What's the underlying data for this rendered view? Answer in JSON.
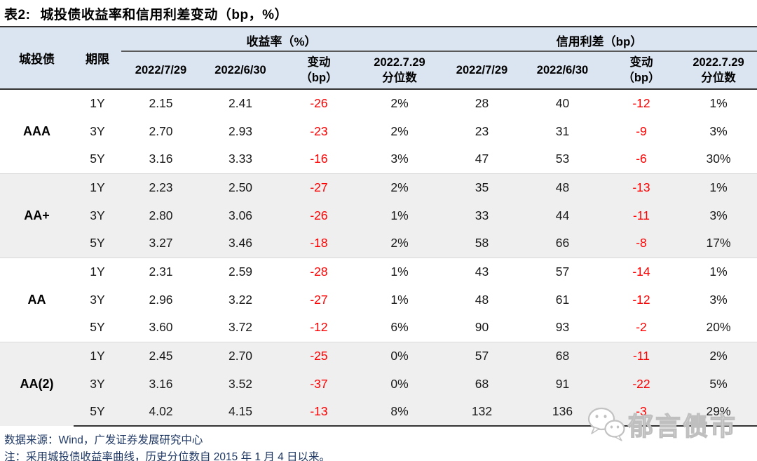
{
  "title": {
    "prefix": "表2:",
    "text": "城投债收益率和信用利差变动（bp，%）"
  },
  "colors": {
    "header_bg": "#dbe5f1",
    "alt_row_bg": "#efefef",
    "negative_value": "#ff0000",
    "footer_text": "#1f3864"
  },
  "table": {
    "corner": {
      "bond": "城投债",
      "tenor": "期限"
    },
    "group_headers": {
      "yield": "收益率（%）",
      "spread": "信用利差（bp）"
    },
    "sub_headers": [
      {
        "lines": [
          "2022/7/29"
        ]
      },
      {
        "lines": [
          "2022/6/30"
        ]
      },
      {
        "lines": [
          "变动",
          "（bp）"
        ]
      },
      {
        "lines": [
          "2022.7.29",
          "分位数"
        ]
      },
      {
        "lines": [
          "2022/7/29"
        ]
      },
      {
        "lines": [
          "2022/6/30"
        ]
      },
      {
        "lines": [
          "变动",
          "（bp）"
        ]
      },
      {
        "lines": [
          "2022.7.29",
          "分位数"
        ]
      }
    ],
    "groups": [
      {
        "rating": "AAA",
        "shaded": false,
        "rows": [
          {
            "tenor": "1Y",
            "values": [
              "2.15",
              "2.41",
              "-26",
              "2%",
              "28",
              "40",
              "-12",
              "1%"
            ]
          },
          {
            "tenor": "3Y",
            "values": [
              "2.70",
              "2.93",
              "-23",
              "2%",
              "23",
              "31",
              "-9",
              "3%"
            ]
          },
          {
            "tenor": "5Y",
            "values": [
              "3.16",
              "3.33",
              "-16",
              "3%",
              "47",
              "53",
              "-6",
              "30%"
            ]
          }
        ]
      },
      {
        "rating": "AA+",
        "shaded": true,
        "rows": [
          {
            "tenor": "1Y",
            "values": [
              "2.23",
              "2.50",
              "-27",
              "2%",
              "35",
              "48",
              "-13",
              "1%"
            ]
          },
          {
            "tenor": "3Y",
            "values": [
              "2.80",
              "3.06",
              "-26",
              "1%",
              "33",
              "44",
              "-11",
              "3%"
            ]
          },
          {
            "tenor": "5Y",
            "values": [
              "3.27",
              "3.46",
              "-18",
              "2%",
              "58",
              "66",
              "-8",
              "17%"
            ]
          }
        ]
      },
      {
        "rating": "AA",
        "shaded": false,
        "rows": [
          {
            "tenor": "1Y",
            "values": [
              "2.31",
              "2.59",
              "-28",
              "1%",
              "43",
              "57",
              "-14",
              "1%"
            ]
          },
          {
            "tenor": "3Y",
            "values": [
              "2.96",
              "3.22",
              "-27",
              "1%",
              "48",
              "61",
              "-12",
              "3%"
            ]
          },
          {
            "tenor": "5Y",
            "values": [
              "3.60",
              "3.72",
              "-12",
              "6%",
              "90",
              "93",
              "-2",
              "20%"
            ]
          }
        ]
      },
      {
        "rating": "AA(2)",
        "shaded": true,
        "rows": [
          {
            "tenor": "1Y",
            "values": [
              "2.45",
              "2.70",
              "-25",
              "0%",
              "57",
              "68",
              "-11",
              "2%"
            ]
          },
          {
            "tenor": "3Y",
            "values": [
              "3.16",
              "3.52",
              "-37",
              "0%",
              "68",
              "91",
              "-22",
              "5%"
            ]
          },
          {
            "tenor": "5Y",
            "values": [
              "4.02",
              "4.15",
              "-13",
              "8%",
              "132",
              "136",
              "-3",
              "29%"
            ]
          }
        ]
      }
    ]
  },
  "chart_data": {
    "type": "table",
    "title": "表2: 城投债收益率和信用利差变动（bp，%）",
    "column_groups": [
      "收益率（%）",
      "信用利差（bp）"
    ],
    "columns": [
      "城投债",
      "期限",
      "收益率 2022/7/29",
      "收益率 2022/6/30",
      "收益率 变动（bp）",
      "收益率 2022.7.29分位数",
      "信用利差 2022/7/29",
      "信用利差 2022/6/30",
      "信用利差 变动（bp）",
      "信用利差 2022.7.29分位数"
    ],
    "rows": [
      [
        "AAA",
        "1Y",
        2.15,
        2.41,
        -26,
        "2%",
        28,
        40,
        -12,
        "1%"
      ],
      [
        "AAA",
        "3Y",
        2.7,
        2.93,
        -23,
        "2%",
        23,
        31,
        -9,
        "3%"
      ],
      [
        "AAA",
        "5Y",
        3.16,
        3.33,
        -16,
        "3%",
        47,
        53,
        -6,
        "30%"
      ],
      [
        "AA+",
        "1Y",
        2.23,
        2.5,
        -27,
        "2%",
        35,
        48,
        -13,
        "1%"
      ],
      [
        "AA+",
        "3Y",
        2.8,
        3.06,
        -26,
        "1%",
        33,
        44,
        -11,
        "3%"
      ],
      [
        "AA+",
        "5Y",
        3.27,
        3.46,
        -18,
        "2%",
        58,
        66,
        -8,
        "17%"
      ],
      [
        "AA",
        "1Y",
        2.31,
        2.59,
        -28,
        "1%",
        43,
        57,
        -14,
        "1%"
      ],
      [
        "AA",
        "3Y",
        2.96,
        3.22,
        -27,
        "1%",
        48,
        61,
        -12,
        "3%"
      ],
      [
        "AA",
        "5Y",
        3.6,
        3.72,
        -12,
        "6%",
        90,
        93,
        -2,
        "20%"
      ],
      [
        "AA(2)",
        "1Y",
        2.45,
        2.7,
        -25,
        "0%",
        57,
        68,
        -11,
        "2%"
      ],
      [
        "AA(2)",
        "3Y",
        3.16,
        3.52,
        -37,
        "0%",
        68,
        91,
        -22,
        "5%"
      ],
      [
        "AA(2)",
        "5Y",
        4.02,
        4.15,
        -13,
        "8%",
        132,
        136,
        -3,
        "29%"
      ]
    ]
  },
  "footer": {
    "source": "数据来源：Wind，广发证券发展研究中心",
    "note": "注：采用城投债收益率曲线，历史分位数自 2015 年 1 月 4 日以来。"
  },
  "watermark": {
    "text": "郁言债市"
  }
}
